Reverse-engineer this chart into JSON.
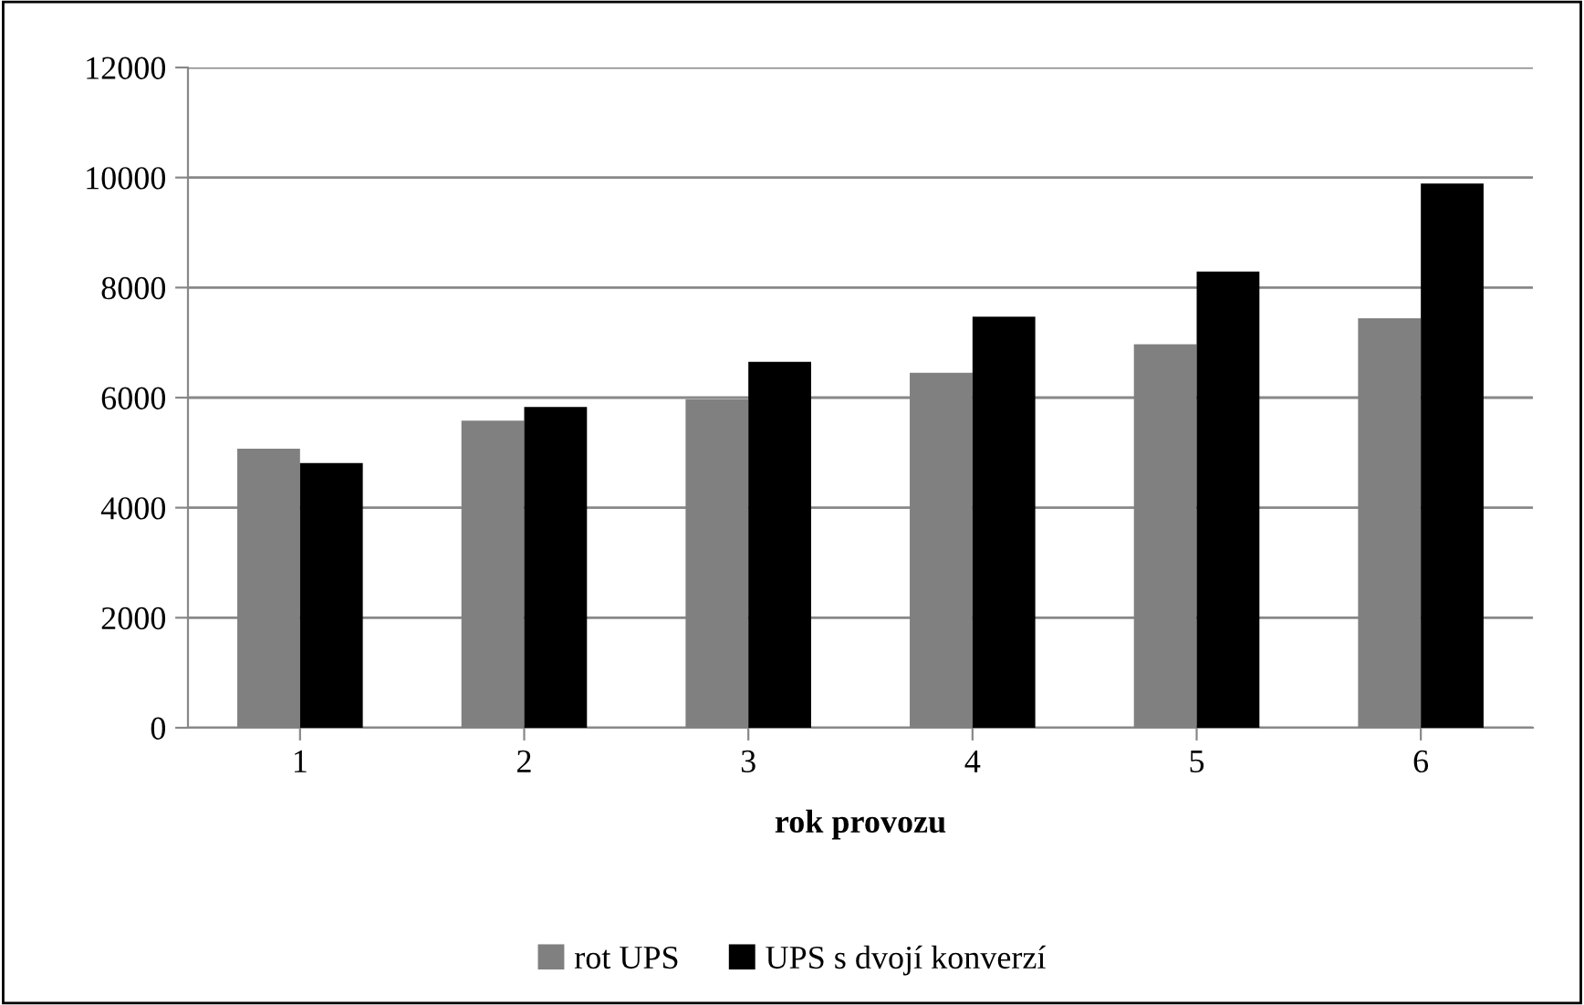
{
  "chart_data": {
    "type": "bar",
    "xlabel": "rok provozu",
    "categories": [
      "1",
      "2",
      "3",
      "4",
      "5",
      "6"
    ],
    "series": [
      {
        "name": "rot UPS",
        "color": "#808080",
        "values": [
          5070,
          5580,
          5970,
          6450,
          6970,
          7440
        ]
      },
      {
        "name": "UPS s dvojí konverzí",
        "color": "#000000",
        "values": [
          4810,
          5830,
          6650,
          7470,
          8290,
          9890
        ]
      }
    ],
    "ylim": [
      0,
      12000
    ],
    "yticks": [
      0,
      2000,
      4000,
      6000,
      8000,
      10000,
      12000
    ],
    "grid": "y",
    "legend": "bottom"
  }
}
